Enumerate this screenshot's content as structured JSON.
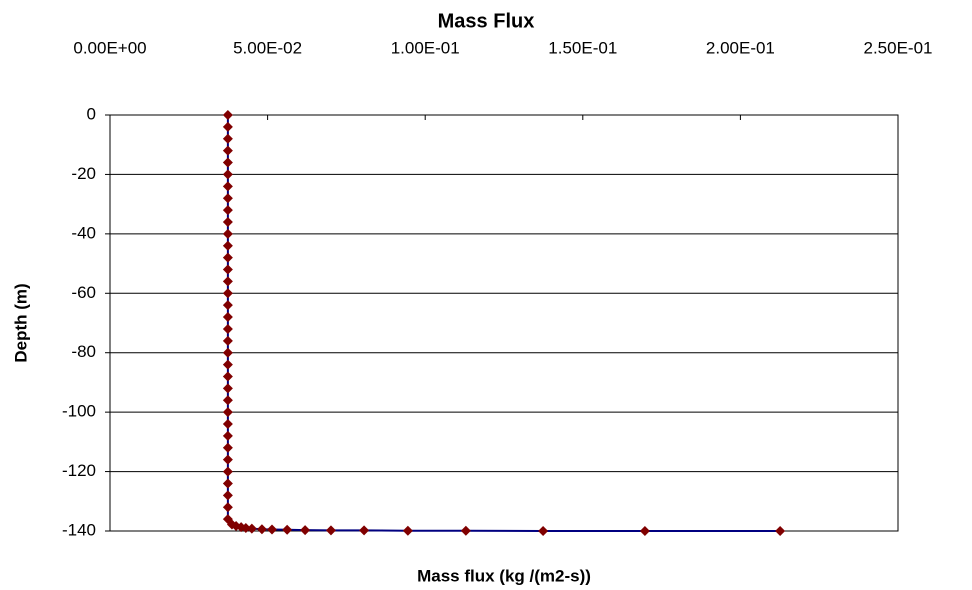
{
  "chart_data": {
    "type": "line",
    "title": "Mass Flux",
    "x_label": "Mass flux (kg /(m2-s))",
    "y_label": "Depth (m)",
    "x": [
      0.0374,
      0.0374,
      0.0374,
      0.0374,
      0.0374,
      0.0374,
      0.0374,
      0.0374,
      0.0374,
      0.0374,
      0.0374,
      0.0374,
      0.0374,
      0.0374,
      0.0374,
      0.0374,
      0.0374,
      0.0374,
      0.0374,
      0.0374,
      0.0374,
      0.0374,
      0.0374,
      0.0374,
      0.0374,
      0.0374,
      0.0374,
      0.0374,
      0.0374,
      0.0374,
      0.0374,
      0.0374,
      0.0374,
      0.0374,
      0.0374,
      0.0387,
      0.04,
      0.0416,
      0.0431,
      0.045,
      0.0482,
      0.0514,
      0.0562,
      0.0619,
      0.0701,
      0.0806,
      0.0945,
      0.1129,
      0.1374,
      0.1697,
      0.2126
    ],
    "values": [
      0,
      -4,
      -8,
      -12,
      -16,
      -20,
      -24,
      -28,
      -32,
      -36,
      -40,
      -44,
      -48,
      -52,
      -56,
      -60,
      -64,
      -68,
      -72,
      -76,
      -80,
      -84,
      -88,
      -92,
      -96,
      -100,
      -104,
      -108,
      -112,
      -116,
      -120,
      -124,
      -128,
      -132,
      -136,
      -137.8,
      -138.3,
      -138.7,
      -139,
      -139.2,
      -139.4,
      -139.5,
      -139.6,
      -139.7,
      -139.8,
      -139.8,
      -139.9,
      -139.9,
      -140,
      -140,
      -140
    ],
    "line_color": "#000080",
    "marker_color": "#800000",
    "xlim": [
      0,
      0.25
    ],
    "xticks": [
      {
        "value": 0,
        "label": "0.00E+00"
      },
      {
        "value": 0.05,
        "label": "5.00E-02"
      },
      {
        "value": 0.1,
        "label": "1.00E-01"
      },
      {
        "value": 0.15,
        "label": "1.50E-01"
      },
      {
        "value": 0.2,
        "label": "2.00E-01"
      },
      {
        "value": 0.25,
        "label": "2.50E-01"
      }
    ],
    "ylim": [
      -140,
      0
    ],
    "yticks": [
      0,
      -20,
      -40,
      -60,
      -80,
      -100,
      -120,
      -140
    ],
    "x_axis_position": "top",
    "grid": true
  }
}
